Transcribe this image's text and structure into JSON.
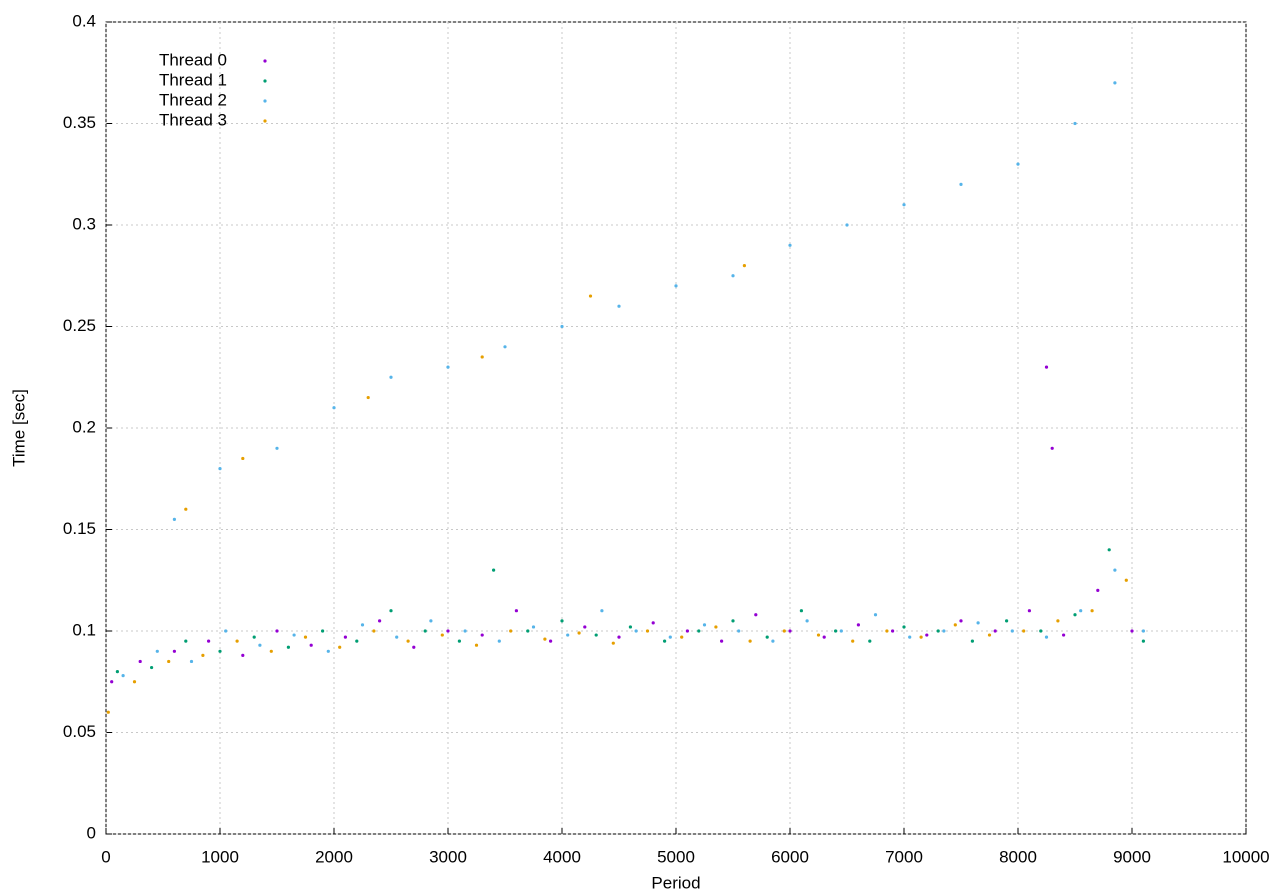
{
  "chart_data": {
    "type": "scatter",
    "x_label": "Period",
    "y_label": "Time [sec]",
    "xlim": [
      0,
      10000
    ],
    "xticks": [
      0,
      1000,
      2000,
      3000,
      4000,
      5000,
      6000,
      7000,
      8000,
      9000,
      10000
    ],
    "ylim": [
      0,
      0.4
    ],
    "yticks": [
      0,
      0.05,
      0.1,
      0.15,
      0.2,
      0.25,
      0.3,
      0.35,
      0.4
    ],
    "grid": true,
    "legend": "top-left",
    "series": [
      {
        "name": "Thread 0",
        "color": "#9400d3",
        "x": [
          50,
          300,
          600,
          900,
          1200,
          1500,
          1800,
          2100,
          2400,
          2700,
          3000,
          3300,
          3600,
          3900,
          4200,
          4500,
          4800,
          5100,
          5400,
          5700,
          6000,
          6300,
          6600,
          6900,
          7200,
          7500,
          7800,
          8100,
          8400,
          8700,
          9000,
          8250,
          8300
        ],
        "y": [
          0.075,
          0.085,
          0.09,
          0.095,
          0.088,
          0.1,
          0.093,
          0.097,
          0.105,
          0.092,
          0.1,
          0.098,
          0.11,
          0.095,
          0.102,
          0.097,
          0.104,
          0.1,
          0.095,
          0.108,
          0.1,
          0.097,
          0.103,
          0.1,
          0.098,
          0.105,
          0.1,
          0.11,
          0.098,
          0.12,
          0.1,
          0.23,
          0.19
        ]
      },
      {
        "name": "Thread 1",
        "color": "#009e73",
        "x": [
          100,
          400,
          700,
          1000,
          1300,
          1600,
          1900,
          2200,
          2500,
          2800,
          3100,
          3400,
          3700,
          4000,
          4300,
          4600,
          4900,
          5200,
          5500,
          5800,
          6100,
          6400,
          6700,
          7000,
          7300,
          7600,
          7900,
          8200,
          8500,
          8800,
          9100
        ],
        "y": [
          0.08,
          0.082,
          0.095,
          0.09,
          0.097,
          0.092,
          0.1,
          0.095,
          0.11,
          0.1,
          0.095,
          0.13,
          0.1,
          0.105,
          0.098,
          0.102,
          0.095,
          0.1,
          0.105,
          0.097,
          0.11,
          0.1,
          0.095,
          0.102,
          0.1,
          0.095,
          0.105,
          0.1,
          0.108,
          0.14,
          0.095
        ]
      },
      {
        "name": "Thread 2",
        "color": "#56b4e9",
        "x": [
          150,
          450,
          750,
          1050,
          1350,
          1650,
          1950,
          2250,
          2550,
          2850,
          3150,
          3450,
          3750,
          4050,
          4350,
          4650,
          4950,
          5250,
          5550,
          5850,
          6150,
          6450,
          6750,
          7050,
          7350,
          7650,
          7950,
          8250,
          8550,
          8850,
          9100,
          600,
          1000,
          1500,
          2000,
          2500,
          3000,
          3500,
          4000,
          4500,
          5000,
          5500,
          6000,
          6500,
          7000,
          7500,
          8000,
          8500,
          8850
        ],
        "y": [
          0.078,
          0.09,
          0.085,
          0.1,
          0.093,
          0.098,
          0.09,
          0.103,
          0.097,
          0.105,
          0.1,
          0.095,
          0.102,
          0.098,
          0.11,
          0.1,
          0.097,
          0.103,
          0.1,
          0.095,
          0.105,
          0.1,
          0.108,
          0.097,
          0.1,
          0.104,
          0.1,
          0.097,
          0.11,
          0.13,
          0.1,
          0.155,
          0.18,
          0.19,
          0.21,
          0.225,
          0.23,
          0.24,
          0.25,
          0.26,
          0.27,
          0.275,
          0.29,
          0.3,
          0.31,
          0.32,
          0.33,
          0.35,
          0.37
        ]
      },
      {
        "name": "Thread 3",
        "color": "#e69f00",
        "x": [
          20,
          250,
          550,
          850,
          1150,
          1450,
          1750,
          2050,
          2350,
          2650,
          2950,
          3250,
          3550,
          3850,
          4150,
          4450,
          4750,
          5050,
          5350,
          5650,
          5950,
          6250,
          6550,
          6850,
          7150,
          7450,
          7750,
          8050,
          8350,
          8650,
          8950,
          700,
          1200,
          2300,
          3300,
          4250,
          5600
        ],
        "y": [
          0.06,
          0.075,
          0.085,
          0.088,
          0.095,
          0.09,
          0.097,
          0.092,
          0.1,
          0.095,
          0.098,
          0.093,
          0.1,
          0.096,
          0.099,
          0.094,
          0.1,
          0.097,
          0.102,
          0.095,
          0.1,
          0.098,
          0.095,
          0.1,
          0.097,
          0.103,
          0.098,
          0.1,
          0.105,
          0.11,
          0.125,
          0.16,
          0.185,
          0.215,
          0.235,
          0.265,
          0.28
        ]
      }
    ]
  }
}
